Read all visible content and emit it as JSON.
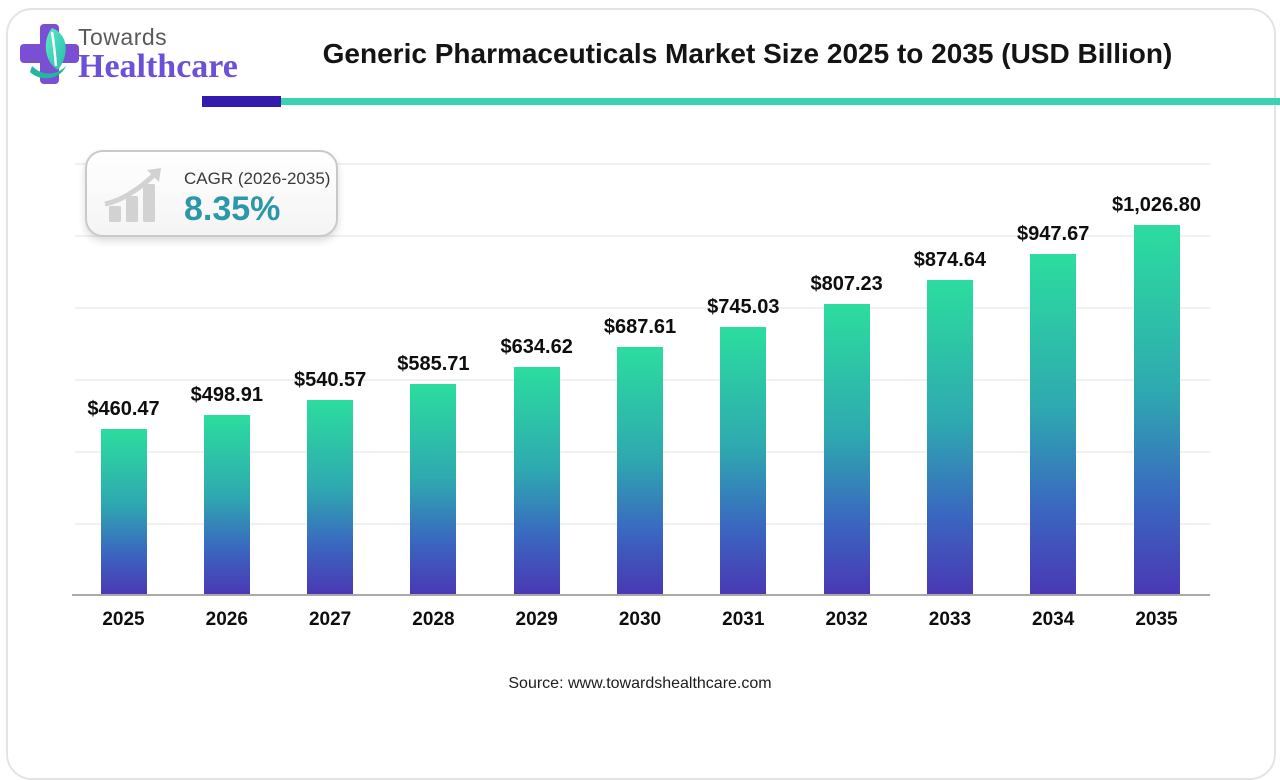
{
  "header": {
    "logo_towards": "Towards",
    "logo_healthcare": "Healthcare",
    "title": "Generic Pharmaceuticals Market Size 2025 to 2035 (USD Billion)",
    "underline_purple_color": "#341bab",
    "underline_teal_color": "#3bd2b1"
  },
  "cagr_badge": {
    "label": "CAGR (2026-2035)",
    "value": "8.35%",
    "value_color": "#2b97a8"
  },
  "chart_data": {
    "type": "bar",
    "title": "Generic Pharmaceuticals Market Size 2025 to 2035 (USD Billion)",
    "categories": [
      "2025",
      "2026",
      "2027",
      "2028",
      "2029",
      "2030",
      "2031",
      "2032",
      "2033",
      "2034",
      "2035"
    ],
    "values": [
      460.47,
      498.91,
      540.57,
      585.71,
      634.62,
      687.61,
      745.03,
      807.23,
      874.64,
      947.67,
      1026.8
    ],
    "labels": [
      "$460.47",
      "$498.91",
      "$540.57",
      "$585.71",
      "$634.62",
      "$687.61",
      "$745.03",
      "$807.23",
      "$874.64",
      "$947.67",
      "$1,026.80"
    ],
    "xlabel": "",
    "ylabel": "",
    "ylim": [
      0,
      1200
    ],
    "gridline_step": 200,
    "grid": true,
    "legend": "none",
    "bar_gradient_top": "#2cdd9e",
    "bar_gradient_mid1": "#2ea9b0",
    "bar_gradient_mid2": "#3a66c0",
    "bar_gradient_bottom": "#4a38b4"
  },
  "footer": {
    "source": "Source: www.towardshealthcare.com"
  }
}
